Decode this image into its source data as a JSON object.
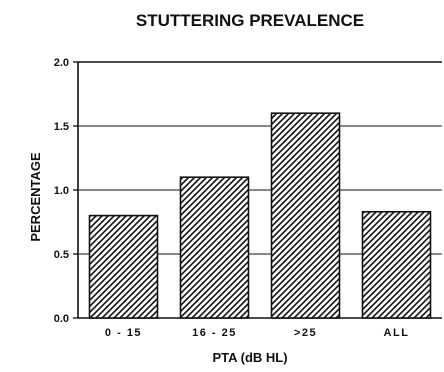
{
  "chart_data": {
    "type": "bar",
    "title": "STUTTERING PREVALENCE",
    "xlabel": "PTA (dB HL)",
    "ylabel": "PERCENTAGE",
    "categories": [
      "0 - 15",
      "16 - 25",
      ">25",
      "ALL"
    ],
    "values": [
      0.8,
      1.1,
      1.6,
      0.83
    ],
    "ylim": [
      0.0,
      2.0
    ],
    "yticks": [
      "0.0",
      "0.5",
      "1.0",
      "1.5",
      "2.0"
    ],
    "grid": "horizontal",
    "legend": "none",
    "bar_fill": "diagonal-hatch"
  },
  "colors": {
    "ink": "#111111",
    "background": "#ffffff"
  }
}
